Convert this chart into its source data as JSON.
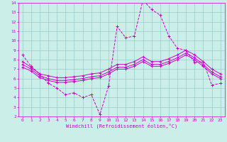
{
  "xlabel": "Windchill (Refroidissement éolien,°C)",
  "bg_color": "#cceee8",
  "line_color": "#cc00cc",
  "grid_color": "#99cccc",
  "xlim": [
    -0.5,
    23.5
  ],
  "ylim": [
    2,
    14
  ],
  "xticks": [
    0,
    1,
    2,
    3,
    4,
    5,
    6,
    7,
    8,
    9,
    10,
    11,
    12,
    13,
    14,
    15,
    16,
    17,
    18,
    19,
    20,
    21,
    22,
    23
  ],
  "yticks": [
    2,
    3,
    4,
    5,
    6,
    7,
    8,
    9,
    10,
    11,
    12,
    13,
    14
  ],
  "line1_x": [
    0,
    1,
    2,
    3,
    4,
    5,
    6,
    7,
    8,
    9,
    10,
    11,
    12,
    13,
    14,
    15,
    16,
    17,
    18,
    19,
    20,
    21,
    22,
    23
  ],
  "line1_y": [
    8.5,
    7.3,
    6.5,
    5.5,
    5.0,
    4.3,
    4.5,
    4.0,
    4.3,
    2.2,
    5.2,
    11.5,
    10.3,
    10.5,
    14.3,
    13.3,
    12.7,
    10.5,
    9.2,
    9.0,
    7.7,
    7.8,
    5.3,
    5.5
  ],
  "line2_x": [
    0,
    1,
    2,
    3,
    4,
    5,
    6,
    7,
    8,
    9,
    10,
    11,
    12,
    13,
    14,
    15,
    16,
    17,
    18,
    19,
    20,
    21,
    22,
    23
  ],
  "line2_y": [
    7.8,
    7.2,
    6.5,
    6.3,
    6.1,
    6.1,
    6.2,
    6.3,
    6.5,
    6.6,
    7.0,
    7.5,
    7.5,
    7.8,
    8.3,
    7.8,
    7.8,
    8.1,
    8.5,
    9.0,
    8.5,
    7.8,
    7.0,
    6.5
  ],
  "line3_x": [
    0,
    1,
    2,
    3,
    4,
    5,
    6,
    7,
    8,
    9,
    10,
    11,
    12,
    13,
    14,
    15,
    16,
    17,
    18,
    19,
    20,
    21,
    22,
    23
  ],
  "line3_y": [
    7.5,
    7.0,
    6.3,
    6.0,
    5.8,
    5.8,
    5.9,
    6.0,
    6.2,
    6.3,
    6.7,
    7.2,
    7.2,
    7.5,
    8.0,
    7.5,
    7.5,
    7.8,
    8.2,
    8.7,
    8.2,
    7.5,
    6.7,
    6.2
  ],
  "line4_x": [
    0,
    1,
    2,
    3,
    4,
    5,
    6,
    7,
    8,
    9,
    10,
    11,
    12,
    13,
    14,
    15,
    16,
    17,
    18,
    19,
    20,
    21,
    22,
    23
  ],
  "line4_y": [
    7.2,
    6.8,
    6.1,
    5.8,
    5.6,
    5.6,
    5.7,
    5.8,
    6.0,
    6.1,
    6.5,
    7.0,
    7.0,
    7.3,
    7.8,
    7.3,
    7.3,
    7.6,
    8.0,
    8.5,
    8.0,
    7.3,
    6.5,
    6.0
  ]
}
